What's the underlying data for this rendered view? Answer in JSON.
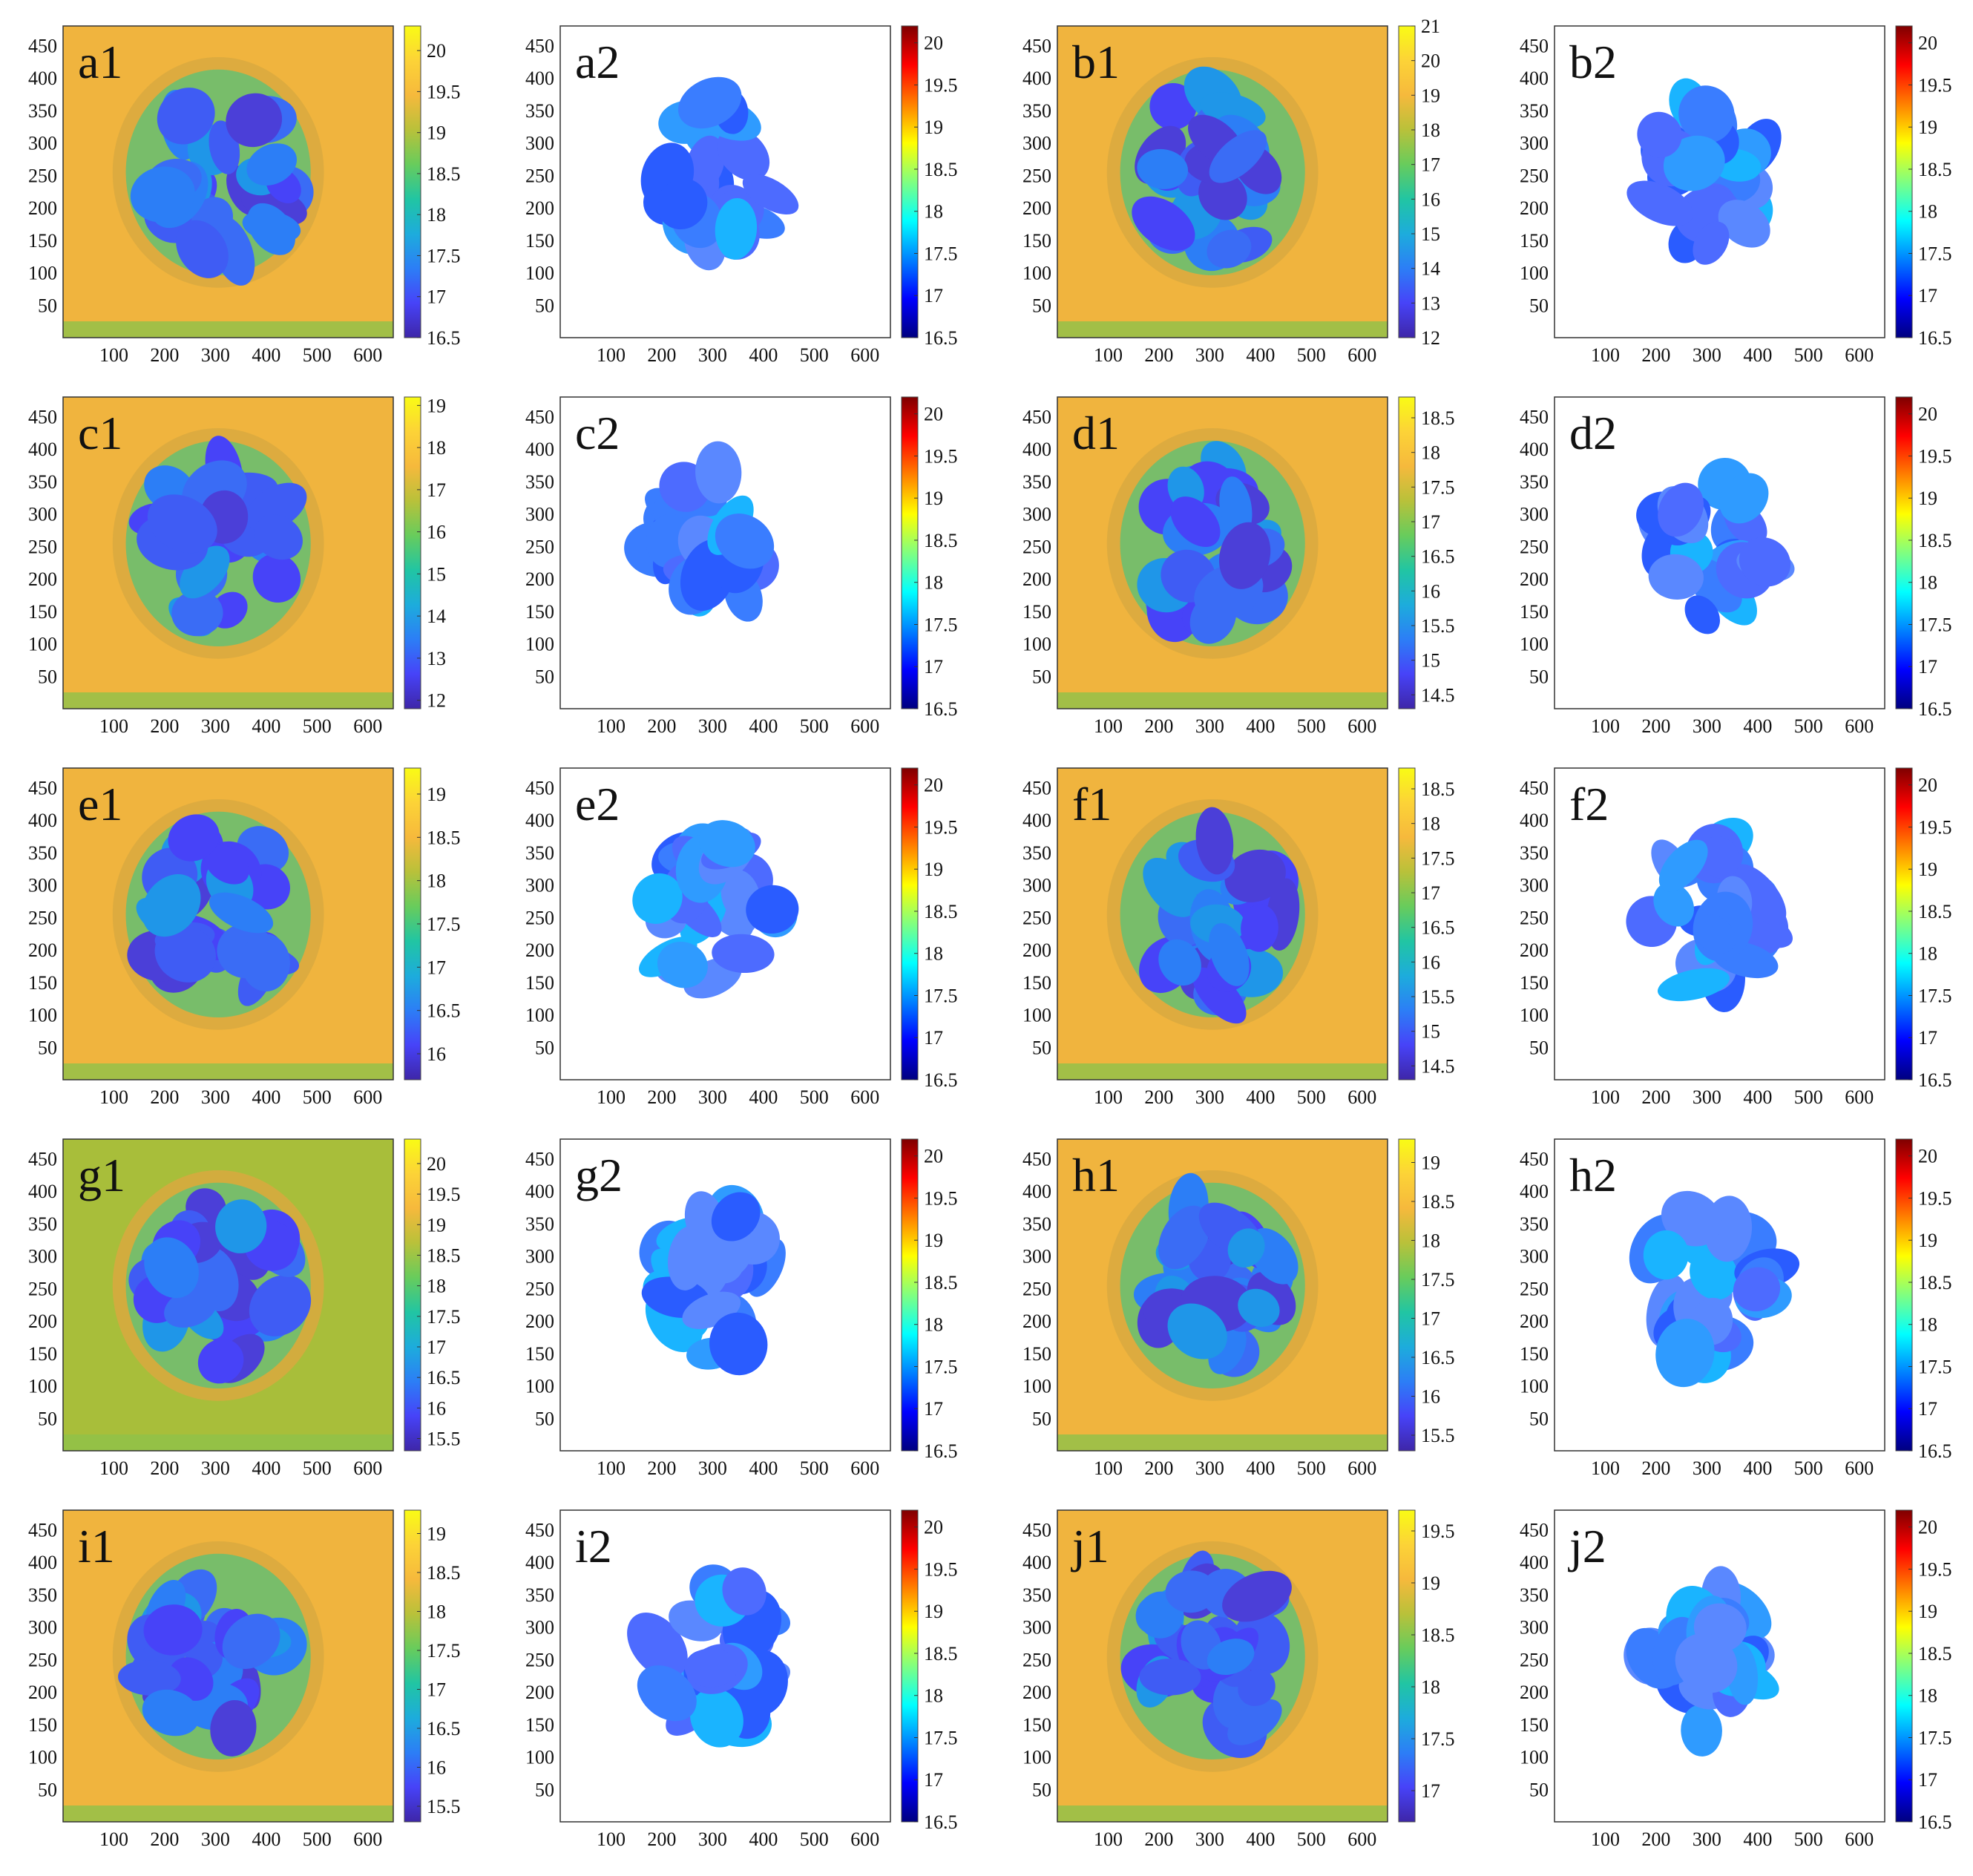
{
  "figure": {
    "xticks": [
      "100",
      "200",
      "300",
      "400",
      "500",
      "600"
    ],
    "yticks": [
      "50",
      "100",
      "150",
      "200",
      "250",
      "300",
      "350",
      "400",
      "450"
    ]
  },
  "colors": {
    "parula": [
      "#3e26a8",
      "#4743f8",
      "#2c7ef6",
      "#1dacdc",
      "#21c5a3",
      "#68cc5c",
      "#b9c13a",
      "#f6b93c",
      "#fcd337",
      "#f9fb15"
    ],
    "jet": [
      "#00007f",
      "#0000ff",
      "#0080ff",
      "#00ffff",
      "#80ff80",
      "#ffff00",
      "#ff8000",
      "#ff0000",
      "#7f0000"
    ],
    "background_yellow": "#f0b43e",
    "background_green": "#a8be3a"
  },
  "chart_data": [
    {
      "type": "heatmap",
      "label": "a1",
      "colormap": "parula",
      "clim": [
        16.5,
        20.3
      ],
      "colorbar_ticks": [
        "20",
        "19.5",
        "19",
        "18.5",
        "18",
        "17.5",
        "17",
        "16.5"
      ]
    },
    {
      "type": "heatmap",
      "label": "a2",
      "colormap": "jet",
      "clim": [
        16.5,
        20.2
      ],
      "colorbar_ticks": [
        "20",
        "19.5",
        "19",
        "18.5",
        "18",
        "17.5",
        "17",
        "16.5"
      ]
    },
    {
      "type": "heatmap",
      "label": "b1",
      "colormap": "parula",
      "clim": [
        12,
        21
      ],
      "colorbar_ticks": [
        "21",
        "20",
        "19",
        "18",
        "17",
        "16",
        "15",
        "14",
        "13",
        "12"
      ]
    },
    {
      "type": "heatmap",
      "label": "b2",
      "colormap": "jet",
      "clim": [
        16.5,
        20.2
      ],
      "colorbar_ticks": [
        "20",
        "19.5",
        "19",
        "18.5",
        "18",
        "17.5",
        "17",
        "16.5"
      ]
    },
    {
      "type": "heatmap",
      "label": "c1",
      "colormap": "parula",
      "clim": [
        11.8,
        19.2
      ],
      "colorbar_ticks": [
        "19",
        "18",
        "17",
        "16",
        "15",
        "14",
        "13",
        "12"
      ]
    },
    {
      "type": "heatmap",
      "label": "c2",
      "colormap": "jet",
      "clim": [
        16.5,
        20.2
      ],
      "colorbar_ticks": [
        "20",
        "19.5",
        "19",
        "18.5",
        "18",
        "17.5",
        "17",
        "16.5"
      ]
    },
    {
      "type": "heatmap",
      "label": "d1",
      "colormap": "parula",
      "clim": [
        14.3,
        18.8
      ],
      "colorbar_ticks": [
        "18.5",
        "18",
        "17.5",
        "17",
        "16.5",
        "16",
        "15.5",
        "15",
        "14.5"
      ]
    },
    {
      "type": "heatmap",
      "label": "d2",
      "colormap": "jet",
      "clim": [
        16.5,
        20.2
      ],
      "colorbar_ticks": [
        "20",
        "19.5",
        "19",
        "18.5",
        "18",
        "17.5",
        "17",
        "16.5"
      ]
    },
    {
      "type": "heatmap",
      "label": "e1",
      "colormap": "parula",
      "clim": [
        15.7,
        19.3
      ],
      "colorbar_ticks": [
        "19",
        "18.5",
        "18",
        "17.5",
        "17",
        "16.5",
        "16"
      ]
    },
    {
      "type": "heatmap",
      "label": "e2",
      "colormap": "jet",
      "clim": [
        16.5,
        20.2
      ],
      "colorbar_ticks": [
        "20",
        "19.5",
        "19",
        "18.5",
        "18",
        "17.5",
        "17",
        "16.5"
      ]
    },
    {
      "type": "heatmap",
      "label": "f1",
      "colormap": "parula",
      "clim": [
        14.3,
        18.8
      ],
      "colorbar_ticks": [
        "18.5",
        "18",
        "17.5",
        "17",
        "16.5",
        "16",
        "15.5",
        "15",
        "14.5"
      ]
    },
    {
      "type": "heatmap",
      "label": "f2",
      "colormap": "jet",
      "clim": [
        16.5,
        20.2
      ],
      "colorbar_ticks": [
        "20",
        "19.5",
        "19",
        "18.5",
        "18",
        "17.5",
        "17",
        "16.5"
      ]
    },
    {
      "type": "heatmap",
      "label": "g1",
      "colormap": "parula",
      "clim": [
        15.3,
        20.4
      ],
      "colorbar_ticks": [
        "20",
        "19.5",
        "19",
        "18.5",
        "18",
        "17.5",
        "17",
        "16.5",
        "16",
        "15.5"
      ]
    },
    {
      "type": "heatmap",
      "label": "g2",
      "colormap": "jet",
      "clim": [
        16.5,
        20.2
      ],
      "colorbar_ticks": [
        "20",
        "19.5",
        "19",
        "18.5",
        "18",
        "17.5",
        "17",
        "16.5"
      ]
    },
    {
      "type": "heatmap",
      "label": "h1",
      "colormap": "parula",
      "clim": [
        15.3,
        19.3
      ],
      "colorbar_ticks": [
        "19",
        "18.5",
        "18",
        "17.5",
        "17",
        "16.5",
        "16",
        "15.5"
      ]
    },
    {
      "type": "heatmap",
      "label": "h2",
      "colormap": "jet",
      "clim": [
        16.5,
        20.2
      ],
      "colorbar_ticks": [
        "20",
        "19.5",
        "19",
        "18.5",
        "18",
        "17.5",
        "17",
        "16.5"
      ]
    },
    {
      "type": "heatmap",
      "label": "i1",
      "colormap": "parula",
      "clim": [
        15.3,
        19.3
      ],
      "colorbar_ticks": [
        "19",
        "18.5",
        "18",
        "17.5",
        "17",
        "16.5",
        "16",
        "15.5"
      ]
    },
    {
      "type": "heatmap",
      "label": "i2",
      "colormap": "jet",
      "clim": [
        16.5,
        20.2
      ],
      "colorbar_ticks": [
        "20",
        "19.5",
        "19",
        "18.5",
        "18",
        "17.5",
        "17",
        "16.5"
      ]
    },
    {
      "type": "heatmap",
      "label": "j1",
      "colormap": "parula",
      "clim": [
        16.7,
        19.7
      ],
      "colorbar_ticks": [
        "19.5",
        "19",
        "18.5",
        "18",
        "17.5",
        "17"
      ]
    },
    {
      "type": "heatmap",
      "label": "j2",
      "colormap": "jet",
      "clim": [
        16.5,
        20.2
      ],
      "colorbar_ticks": [
        "20",
        "19.5",
        "19",
        "18.5",
        "18",
        "17.5",
        "17",
        "16.5"
      ]
    }
  ]
}
